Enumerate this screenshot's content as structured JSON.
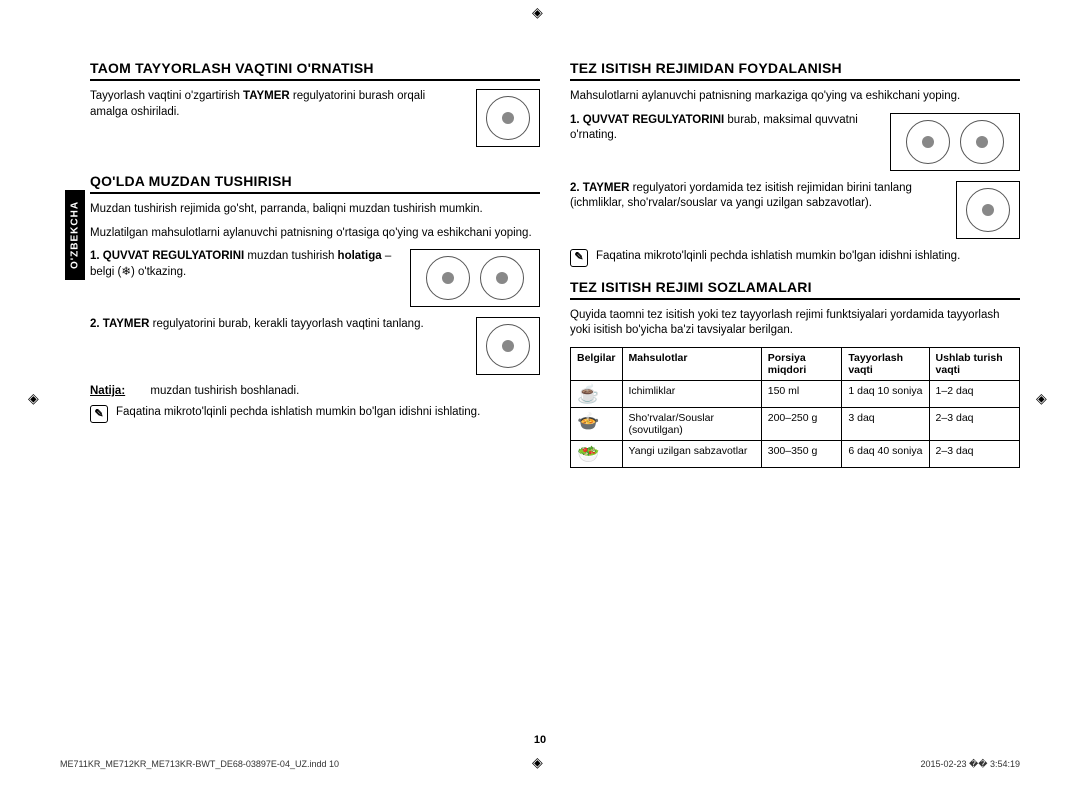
{
  "side_tab": "O'ZBEKCHA",
  "left": {
    "s1": {
      "title": "TAOM TAYYORLASH VAQTINI O'RNATISH",
      "p1a": "Tayyorlash vaqtini o'zgartirish ",
      "p1b": "TAYMER",
      "p1c": " regulyatorini burash orqali amalga oshiriladi."
    },
    "s2": {
      "title": "QO'LDA MUZDAN TUSHIRISH",
      "p1": "Muzdan tushirish rejimida go'sht, parranda, baliqni muzdan tushirish mumkin.",
      "p2": "Muzlatilgan mahsulotlarni aylanuvchi patnisning o'rtasiga qo'ying va eshikchani yoping.",
      "step1a": "1. QUVVAT REGULYATORINI",
      "step1b": " muzdan tushirish ",
      "step1c": "holatiga",
      "step1d": " – belgi (❄) o'tkazing.",
      "step2a": "2. TAYMER",
      "step2b": " regulyatorini burab, kerakli tayyorlash vaqtini tanlang.",
      "result_lbl": "Natija:",
      "result_txt": "muzdan tushirish boshlanadi.",
      "note": "Faqatina mikroto'lqinli pechda ishlatish mumkin bo'lgan idishni ishlating."
    }
  },
  "right": {
    "s1": {
      "title": "TEZ ISITISH REJIMIDAN FOYDALANISH",
      "p1": "Mahsulotlarni aylanuvchi patnisning markaziga qo'ying va eshikchani yoping.",
      "step1a": "1. QUVVAT REGULYATORINI",
      "step1b": " burab, maksimal quvvatni o'rnating.",
      "step2a": "2. TAYMER",
      "step2b": " regulyatori yordamida tez isitish rejimidan birini tanlang (ichmliklar, sho'rvalar/souslar va yangi uzilgan sabzavotlar).",
      "note": "Faqatina mikroto'lqinli pechda ishlatish mumkin bo'lgan idishni ishlating."
    },
    "s2": {
      "title": "TEZ ISITISH REJIMI SOZLAMALARI",
      "p1": "Quyida taomni tez isitish yoki tez tayyorlash rejimi funktsiyalari yordamida tayyorlash yoki isitish bo'yicha ba'zi tavsiyalar berilgan.",
      "table": {
        "headers": [
          "Belgilar",
          "Mahsulotlar",
          "Porsiya miqdori",
          "Tayyorlash vaqti",
          "Ushlab turish vaqti"
        ],
        "rows": [
          {
            "sym": "☕",
            "prod": "Ichimliklar",
            "port": "150 ml",
            "cook": "1 daq 10 soniya",
            "hold": "1–2 daq"
          },
          {
            "sym": "🍲",
            "prod": "Sho'rvalar/Souslar (sovutilgan)",
            "port": "200–250 g",
            "cook": "3 daq",
            "hold": "2–3 daq"
          },
          {
            "sym": "🥗",
            "prod": "Yangi uzilgan sabzavotlar",
            "port": "300–350 g",
            "cook": "6 daq 40 soniya",
            "hold": "2–3 daq"
          }
        ]
      }
    }
  },
  "page_num": "10",
  "footer_left": "ME711KR_ME712KR_ME713KR-BWT_DE68-03897E-04_UZ.indd   10",
  "footer_right": "2015-02-23   �� 3:54:19"
}
